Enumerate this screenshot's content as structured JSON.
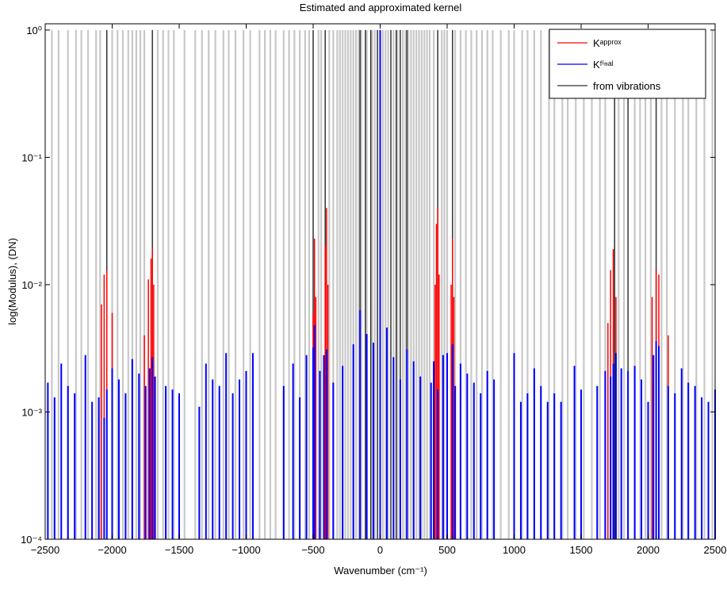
{
  "chart_data": {
    "type": "stem",
    "title": "Estimated and approximated kernel",
    "x_label": "Wavenumber (cm⁻¹)",
    "y_label": "log(Modulus), (DN)",
    "xlim": [
      -2500,
      2500
    ],
    "xticks": [
      {
        "value": -2500,
        "label": "−2500"
      },
      {
        "value": -2000,
        "label": "−2000"
      },
      {
        "value": -1500,
        "label": "−1500"
      },
      {
        "value": -1000,
        "label": "−1000"
      },
      {
        "value": -500,
        "label": "−500"
      },
      0,
      500,
      1000,
      1500,
      2000,
      2500
    ],
    "ylim": [
      0.0001,
      1.12
    ],
    "yticks": [
      {
        "value": 0.0001,
        "label": "10⁻⁴"
      },
      {
        "value": 0.001,
        "label": "10⁻³"
      },
      {
        "value": 0.01,
        "label": "10⁻²"
      },
      {
        "value": 0.1,
        "label": "10⁻¹"
      },
      {
        "value": 1,
        "label": "10⁰"
      }
    ],
    "log_y": true,
    "legend": "upper right",
    "background_lines": {
      "color": "#c8c8c8",
      "value": 1,
      "x": [
        -2450,
        -2400,
        -2330,
        -2270,
        -2230,
        -2180,
        -2120,
        -2090,
        -2000,
        -1960,
        -1920,
        -1880,
        -1850,
        -1820,
        -1790,
        -1760,
        -1660,
        -1620,
        -1580,
        -1540,
        -1460,
        -1380,
        -1330,
        -1280,
        -1230,
        -1170,
        -1130,
        -1080,
        -1020,
        -970,
        -900,
        -860,
        -820,
        -780,
        -720,
        -680,
        -640,
        -600,
        -560,
        -530,
        -460,
        -440,
        -380,
        -350,
        -320,
        -300,
        -280,
        -260,
        -240,
        -220,
        -200,
        -180,
        -160,
        -140,
        -100,
        -60,
        -40,
        20,
        40,
        60,
        100,
        130,
        170,
        190,
        210,
        230,
        250,
        270,
        290,
        310,
        330,
        350,
        370,
        400,
        460,
        480,
        500,
        560,
        600,
        640,
        680,
        720,
        760,
        800,
        840,
        900,
        960,
        1000,
        1060,
        1100,
        1150,
        1200,
        1260,
        1300,
        1360,
        1400,
        1460,
        1520,
        1580,
        1640,
        1680,
        1780,
        1820,
        1900,
        1940,
        1980,
        2020,
        2100,
        2140,
        2200,
        2260,
        2300,
        2360,
        2420,
        2480
      ]
    },
    "series": [
      {
        "name": "Kᵃᵖᵖʳᵒˣ",
        "color": "#ff0000",
        "x": [
          -2150,
          -2080,
          -2060,
          -2040,
          -2000,
          -1760,
          -1730,
          -1710,
          -1700,
          -1690,
          -500,
          -490,
          -480,
          -410,
          -400,
          -390,
          410,
          420,
          430,
          440,
          530,
          540,
          550,
          1700,
          1720,
          1740,
          1760,
          2030,
          2060,
          2080,
          2150
        ],
        "values": [
          0.0005,
          0.007,
          0.012,
          0.013,
          0.006,
          0.004,
          0.011,
          0.016,
          0.019,
          0.01,
          0.006,
          0.023,
          0.008,
          0.02,
          0.04,
          0.01,
          0.01,
          0.03,
          0.04,
          0.012,
          0.01,
          0.023,
          0.008,
          0.005,
          0.013,
          0.019,
          0.008,
          0.008,
          0.013,
          0.012,
          0.004
        ]
      },
      {
        "name": "Kᶠⁱⁿᵃˡ",
        "color": "#0000ff",
        "x": [
          -2480,
          -2430,
          -2380,
          -2330,
          -2280,
          -2200,
          -2150,
          -2100,
          -2060,
          -2040,
          -2000,
          -1950,
          -1900,
          -1850,
          -1800,
          -1750,
          -1720,
          -1700,
          -1680,
          -1600,
          -1550,
          -1500,
          -1350,
          -1300,
          -1250,
          -1200,
          -1150,
          -1100,
          -1050,
          -1000,
          -950,
          -720,
          -650,
          -600,
          -550,
          -500,
          -490,
          -450,
          -420,
          -400,
          -350,
          -280,
          -200,
          -150,
          -100,
          -50,
          0,
          50,
          100,
          150,
          200,
          250,
          300,
          380,
          400,
          430,
          470,
          500,
          540,
          560,
          600,
          650,
          700,
          750,
          800,
          850,
          1000,
          1050,
          1100,
          1150,
          1200,
          1250,
          1300,
          1350,
          1450,
          1500,
          1620,
          1680,
          1720,
          1740,
          1760,
          1800,
          1850,
          1900,
          1950,
          2000,
          2040,
          2060,
          2080,
          2150,
          2200,
          2250,
          2300,
          2350,
          2400,
          2450,
          2500
        ],
        "values": [
          0.0017,
          0.0013,
          0.0024,
          0.0016,
          0.0014,
          0.0028,
          0.0012,
          0.0013,
          0.0009,
          0.0015,
          0.0022,
          0.0018,
          0.0014,
          0.0026,
          0.002,
          0.0016,
          0.0022,
          0.0027,
          0.0019,
          0.0016,
          0.0015,
          0.0014,
          0.0011,
          0.0024,
          0.0018,
          0.0016,
          0.0029,
          0.0014,
          0.0018,
          0.0021,
          0.0029,
          0.0016,
          0.0024,
          0.0013,
          0.0028,
          0.0032,
          0.0048,
          0.0021,
          0.0028,
          0.0031,
          0.0017,
          0.0023,
          0.0034,
          0.0063,
          0.0041,
          0.0035,
          1,
          0.0046,
          0.0027,
          0.0018,
          0.0031,
          0.0025,
          0.0019,
          0.0017,
          0.0025,
          0.0015,
          0.0028,
          0.0029,
          0.0034,
          0.0016,
          0.0024,
          0.002,
          0.0017,
          0.0014,
          0.0021,
          0.0018,
          0.0029,
          0.0012,
          0.0014,
          0.0022,
          0.0016,
          0.0012,
          0.0014,
          0.0012,
          0.0023,
          0.0015,
          0.0016,
          0.0021,
          0.0019,
          0.0024,
          0.0029,
          0.0022,
          0.0021,
          0.0023,
          0.0018,
          0.0012,
          0.0028,
          0.0036,
          0.0033,
          0.0016,
          0.0014,
          0.0022,
          0.0017,
          0.0016,
          0.0013,
          0.0012,
          0.0015
        ]
      },
      {
        "name": "from vibrations",
        "color": "#333333",
        "x": [
          -2040,
          -1700,
          -500,
          -410,
          -150,
          -110,
          -70,
          -20,
          80,
          120,
          150,
          200,
          430,
          540,
          1750,
          1850,
          2060
        ],
        "values": [
          1,
          1,
          1,
          1,
          1,
          1,
          1,
          1,
          1,
          1,
          1,
          1,
          1,
          1,
          1,
          1,
          1
        ]
      }
    ]
  }
}
